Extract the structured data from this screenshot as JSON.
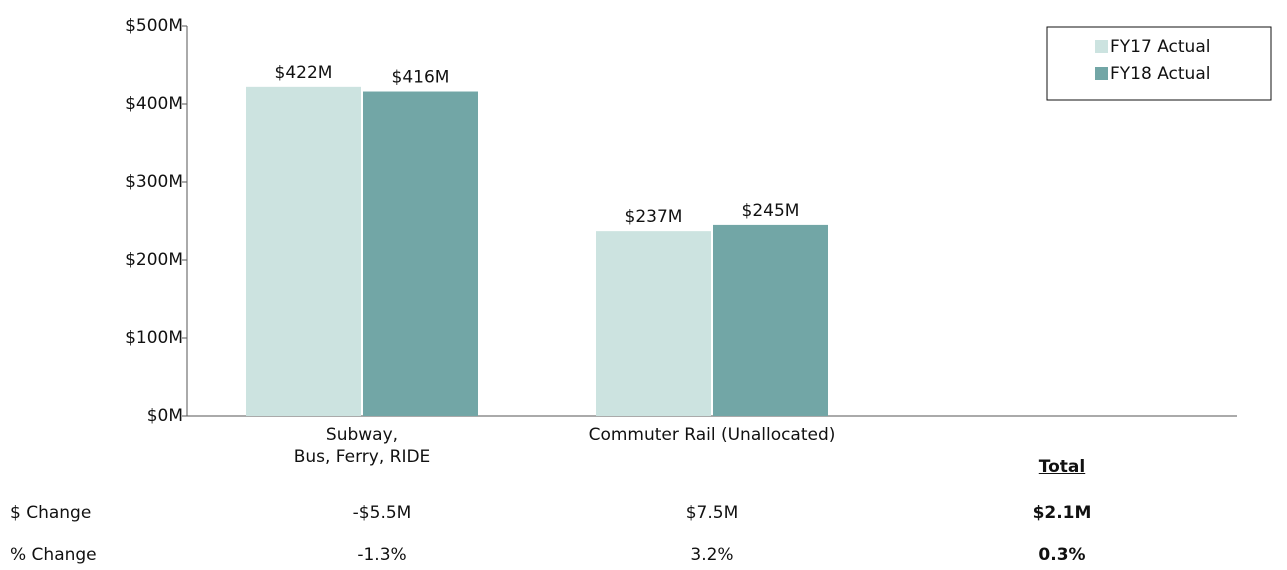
{
  "chart_data": {
    "type": "bar",
    "categories": [
      "Subway,\nBus, Ferry, RIDE",
      "Commuter Rail (Unallocated)"
    ],
    "series": [
      {
        "name": "FY17 Actual",
        "color": "#cce3e0",
        "values": [
          422,
          237
        ],
        "value_labels": [
          "$422M",
          "$237M"
        ]
      },
      {
        "name": "FY18 Actual",
        "color": "#72a6a6",
        "values": [
          416,
          245
        ],
        "value_labels": [
          "$416M",
          "$245M"
        ]
      }
    ],
    "ylim": [
      0,
      500
    ],
    "yticks": [
      {
        "value": 0,
        "label": "$0M"
      },
      {
        "value": 100,
        "label": "$100M"
      },
      {
        "value": 200,
        "label": "$200M"
      },
      {
        "value": 300,
        "label": "$300M"
      },
      {
        "value": 400,
        "label": "$400M"
      },
      {
        "value": 500,
        "label": "$500M"
      }
    ],
    "legend": "top-right",
    "table": {
      "header": "Total",
      "rows": [
        {
          "label": "$ Change",
          "cells": [
            "-$5.5M",
            "$7.5M",
            "$2.1M"
          ]
        },
        {
          "label": "% Change",
          "cells": [
            "-1.3%",
            "3.2%",
            "0.3%"
          ]
        }
      ]
    }
  }
}
